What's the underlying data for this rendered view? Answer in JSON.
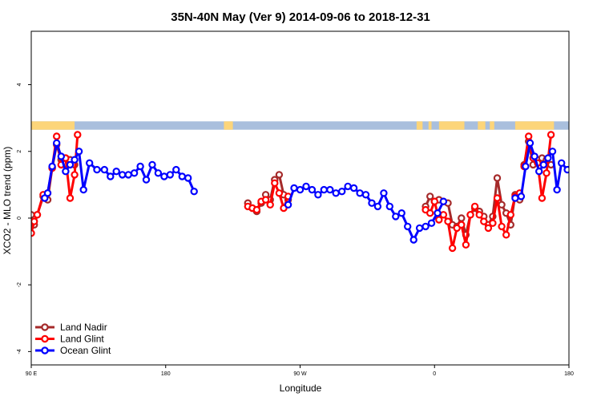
{
  "chart_data": {
    "type": "line",
    "title": "35N-40N May (Ver 9)   2014-09-06 to 2018-12-31",
    "xlabel": "Longitude",
    "ylabel": "XCO2 - MLO trend (ppm)",
    "xlim": [
      90,
      450
    ],
    "ylim": [
      -4.4,
      5.6
    ],
    "x_ticks": [
      {
        "value": 90,
        "label": "90 E"
      },
      {
        "value": 180,
        "label": "180"
      },
      {
        "value": 270,
        "label": "90 W"
      },
      {
        "value": 360,
        "label": "0"
      },
      {
        "value": 450,
        "label": "180"
      }
    ],
    "y_ticks": [
      {
        "value": -4,
        "label": "-4"
      },
      {
        "value": -2,
        "label": "-2"
      },
      {
        "value": 0,
        "label": "0"
      },
      {
        "value": 2,
        "label": "2"
      },
      {
        "value": 4,
        "label": "4"
      }
    ],
    "land_ocean_band": {
      "y_range": [
        2.65,
        2.9
      ],
      "ocean_color": "#a9bfdd",
      "land_color": "#fcd57a",
      "land_segments": [
        [
          90,
          119
        ],
        [
          219,
          225
        ],
        [
          348,
          352
        ],
        [
          356,
          358
        ],
        [
          363,
          380
        ],
        [
          389,
          394
        ],
        [
          397,
          400
        ],
        [
          414,
          440
        ]
      ]
    },
    "legend_position": "bottom-left",
    "series": [
      {
        "name": "Land Nadir",
        "color": "#a52a2a",
        "segments": [
          [
            [
              90,
              0.1
            ],
            [
              92,
              -0.2
            ],
            [
              94,
              0.1
            ],
            [
              98,
              0.65
            ],
            [
              101,
              0.55
            ],
            [
              104,
              1.5
            ],
            [
              107,
              2.2
            ],
            [
              110,
              1.75
            ],
            [
              113,
              1.8
            ],
            [
              116,
              1.75
            ],
            [
              119,
              1.6
            ]
          ],
          [
            [
              235,
              0.45
            ],
            [
              238,
              0.3
            ],
            [
              241,
              0.2
            ],
            [
              244,
              0.45
            ],
            [
              247,
              0.7
            ],
            [
              250,
              0.55
            ],
            [
              253,
              1.15
            ],
            [
              256,
              1.3
            ],
            [
              259,
              0.7
            ],
            [
              262,
              0.55
            ]
          ],
          [
            [
              354,
              0.35
            ],
            [
              357,
              0.65
            ],
            [
              360,
              0.5
            ],
            [
              363,
              0.55
            ],
            [
              366,
              0.5
            ],
            [
              369,
              0.45
            ],
            [
              372,
              -0.2
            ],
            [
              375,
              -0.25
            ],
            [
              378,
              0
            ],
            [
              381,
              -0.5
            ],
            [
              384,
              0.1
            ],
            [
              387,
              0.3
            ],
            [
              390,
              0.2
            ],
            [
              393,
              0.05
            ],
            [
              396,
              -0.2
            ],
            [
              399,
              0.05
            ],
            [
              402,
              1.2
            ],
            [
              405,
              0.4
            ],
            [
              408,
              0.15
            ],
            [
              411,
              -0.2
            ],
            [
              414,
              0.7
            ],
            [
              417,
              0.55
            ]
          ],
          [
            [
              420,
              1.6
            ],
            [
              423,
              2.3
            ],
            [
              426,
              1.6
            ],
            [
              429,
              1.75
            ],
            [
              432,
              1.8
            ],
            [
              435,
              1.75
            ],
            [
              438,
              1.6
            ]
          ]
        ]
      },
      {
        "name": "Land Glint",
        "color": "#ff0000",
        "segments": [
          [
            [
              90,
              -0.45
            ],
            [
              92,
              -0.1
            ],
            [
              94,
              0.1
            ],
            [
              98,
              0.7
            ],
            [
              101,
              0.75
            ],
            [
              104,
              1.5
            ],
            [
              107,
              2.45
            ],
            [
              110,
              1.6
            ],
            [
              113,
              1.8
            ],
            [
              116,
              0.6
            ],
            [
              119,
              1.3
            ],
            [
              121,
              2.5
            ]
          ],
          [
            [
              235,
              0.35
            ],
            [
              238,
              0.3
            ],
            [
              241,
              0.25
            ],
            [
              244,
              0.5
            ],
            [
              247,
              0.55
            ],
            [
              250,
              0.4
            ],
            [
              253,
              1.05
            ],
            [
              256,
              0.75
            ],
            [
              259,
              0.3
            ],
            [
              262,
              0.65
            ]
          ],
          [
            [
              354,
              0.25
            ],
            [
              357,
              0.15
            ],
            [
              360,
              0.5
            ],
            [
              363,
              -0.05
            ],
            [
              366,
              0.1
            ],
            [
              369,
              -0.1
            ],
            [
              372,
              -0.9
            ],
            [
              375,
              -0.3
            ],
            [
              378,
              -0.2
            ],
            [
              381,
              -0.8
            ],
            [
              384,
              0.1
            ],
            [
              387,
              0.35
            ],
            [
              390,
              0.1
            ],
            [
              393,
              -0.1
            ],
            [
              396,
              -0.3
            ],
            [
              399,
              -0.15
            ],
            [
              402,
              0.6
            ],
            [
              405,
              -0.25
            ],
            [
              408,
              -0.5
            ],
            [
              411,
              0.1
            ],
            [
              414,
              0.65
            ],
            [
              417,
              0.75
            ]
          ],
          [
            [
              420,
              1.55
            ],
            [
              423,
              2.45
            ],
            [
              426,
              1.8
            ],
            [
              429,
              1.65
            ],
            [
              432,
              0.6
            ],
            [
              435,
              1.35
            ],
            [
              438,
              2.5
            ]
          ]
        ]
      },
      {
        "name": "Ocean Glint",
        "color": "#0000ff",
        "segments": [
          [
            [
              99,
              0.6
            ],
            [
              101,
              0.75
            ],
            [
              104,
              1.55
            ],
            [
              107,
              2.25
            ],
            [
              110,
              1.85
            ],
            [
              113,
              1.4
            ],
            [
              116,
              1.6
            ],
            [
              119,
              1.75
            ],
            [
              122,
              2.0
            ],
            [
              125,
              0.85
            ],
            [
              129,
              1.65
            ],
            [
              134,
              1.45
            ],
            [
              139,
              1.45
            ],
            [
              143,
              1.25
            ],
            [
              147,
              1.4
            ],
            [
              151,
              1.3
            ],
            [
              155,
              1.3
            ],
            [
              159,
              1.35
            ],
            [
              163,
              1.55
            ],
            [
              167,
              1.15
            ],
            [
              171,
              1.6
            ],
            [
              175,
              1.35
            ],
            [
              179,
              1.25
            ],
            [
              183,
              1.3
            ],
            [
              187,
              1.45
            ],
            [
              191,
              1.25
            ],
            [
              195,
              1.2
            ],
            [
              199,
              0.8
            ]
          ],
          [
            [
              262,
              0.4
            ],
            [
              266,
              0.9
            ],
            [
              270,
              0.85
            ],
            [
              274,
              0.95
            ],
            [
              278,
              0.85
            ],
            [
              282,
              0.7
            ],
            [
              286,
              0.85
            ],
            [
              290,
              0.85
            ],
            [
              294,
              0.75
            ],
            [
              298,
              0.8
            ],
            [
              302,
              0.95
            ],
            [
              306,
              0.9
            ],
            [
              310,
              0.75
            ],
            [
              314,
              0.7
            ],
            [
              318,
              0.45
            ],
            [
              322,
              0.35
            ],
            [
              326,
              0.75
            ],
            [
              330,
              0.35
            ],
            [
              334,
              0.05
            ],
            [
              338,
              0.15
            ],
            [
              342,
              -0.25
            ],
            [
              346,
              -0.65
            ],
            [
              350,
              -0.3
            ],
            [
              354,
              -0.25
            ],
            [
              358,
              -0.15
            ],
            [
              362,
              0.15
            ],
            [
              366,
              0.5
            ]
          ],
          [
            [
              414,
              0.6
            ],
            [
              418,
              0.65
            ],
            [
              421,
              1.55
            ],
            [
              424,
              2.25
            ],
            [
              427,
              1.85
            ],
            [
              430,
              1.4
            ],
            [
              433,
              1.6
            ],
            [
              436,
              1.8
            ],
            [
              439,
              2.0
            ],
            [
              442,
              0.85
            ],
            [
              445,
              1.65
            ],
            [
              449,
              1.45
            ],
            [
              453,
              1.45
            ],
            [
              457,
              1.25
            ],
            [
              461,
              1.4
            ],
            [
              465,
              1.3
            ]
          ]
        ]
      }
    ]
  }
}
